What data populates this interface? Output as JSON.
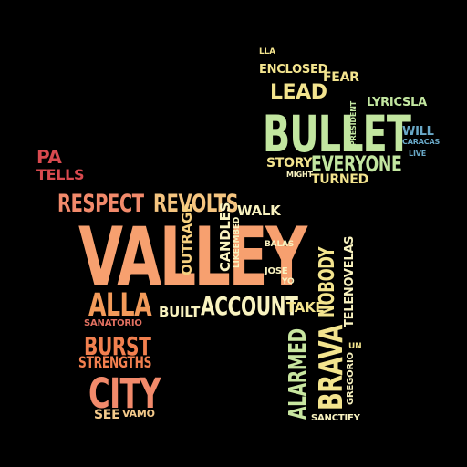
{
  "colors": {
    "background": "#000000",
    "red": "#d94a4f",
    "coral": "#f28a6b",
    "peach": "#f7a06f",
    "orange": "#f39b5a",
    "yellow": "#f3e48e",
    "cream": "#f9f3c0",
    "green": "#c2e6a0",
    "teal": "#7fc8a8",
    "blue": "#6aa9c8"
  },
  "words": [
    {
      "text": "PA",
      "color": "#d94a4f"
    },
    {
      "text": "TELLS",
      "color": "#d94a4f"
    },
    {
      "text": "RESPECT",
      "color": "#f28a6b"
    },
    {
      "text": "REVOLTS",
      "color": "#f5c580"
    },
    {
      "text": "WALK",
      "color": "#f9f3c0"
    },
    {
      "text": "VALLEY",
      "color": "#f7a06f"
    },
    {
      "text": "ALLA",
      "color": "#f39b5a"
    },
    {
      "text": "SANATORIO",
      "color": "#e07060"
    },
    {
      "text": "BURST",
      "color": "#f2804f"
    },
    {
      "text": "STRENGTHS",
      "color": "#f2804f"
    },
    {
      "text": "CITY",
      "color": "#f28a6b"
    },
    {
      "text": "SEE",
      "color": "#f3c98a"
    },
    {
      "text": "VAMO",
      "color": "#f3c98a"
    },
    {
      "text": "BUILT",
      "color": "#f9f3c0"
    },
    {
      "text": "ACCOUNT",
      "color": "#f9f3c0"
    },
    {
      "text": "OUTRAGE",
      "color": "#f5d080"
    },
    {
      "text": "CANDLES",
      "color": "#f9f3c0"
    },
    {
      "text": "LIKEEMBED",
      "color": "#f9f3c0"
    },
    {
      "text": "BALAS",
      "color": "#f9f3c0"
    },
    {
      "text": "JOSE",
      "color": "#f9f3c0"
    },
    {
      "text": "YO",
      "color": "#f9f3c0"
    },
    {
      "text": "TAKE",
      "color": "#f3e48e"
    },
    {
      "text": "NOBODY",
      "color": "#f3e48e"
    },
    {
      "text": "TELENOVELAS",
      "color": "#f9f3c0"
    },
    {
      "text": "ALARMED",
      "color": "#c8e6a0"
    },
    {
      "text": "BRAVA",
      "color": "#f3e48e"
    },
    {
      "text": "GREGORIO",
      "color": "#f9f3c0"
    },
    {
      "text": "UN",
      "color": "#f3e48e"
    },
    {
      "text": "SANCTIFY",
      "color": "#f9f3c0"
    },
    {
      "text": "LLA",
      "color": "#f3e48e"
    },
    {
      "text": "ENCLOSED",
      "color": "#f3e48e"
    },
    {
      "text": "FEAR",
      "color": "#f3e48e"
    },
    {
      "text": "LEAD",
      "color": "#f3e48e"
    },
    {
      "text": "LYRICSLA",
      "color": "#c2e6a0"
    },
    {
      "text": "BULLET",
      "color": "#c2e6a0"
    },
    {
      "text": "PRESIDENT",
      "color": "#c2e6a0"
    },
    {
      "text": "WILL",
      "color": "#6aa9c8"
    },
    {
      "text": "CARACAS",
      "color": "#6aa9c8"
    },
    {
      "text": "LIVE",
      "color": "#6aa9c8"
    },
    {
      "text": "STORY",
      "color": "#f3e48e"
    },
    {
      "text": "EVERYONE",
      "color": "#c2e6a0"
    },
    {
      "text": "MIGHT",
      "color": "#f9f3c0"
    },
    {
      "text": "TURNED",
      "color": "#f3e48e"
    }
  ]
}
